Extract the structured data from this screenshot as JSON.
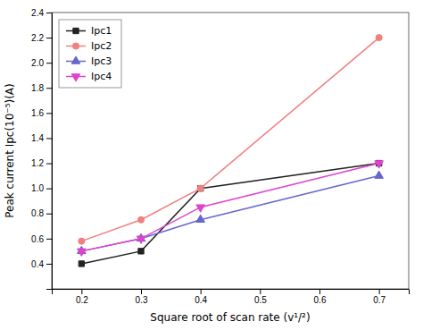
{
  "chart_data": {
    "type": "line",
    "x_label": "Square root of scan rate (v¹/²)",
    "y_label": "Peak current Ipc(10⁻⁵)(A)",
    "x": [
      0.2,
      0.3,
      0.4,
      0.7
    ],
    "series": [
      {
        "name": "Ipc1",
        "color": "#222222",
        "marker": "square",
        "values": [
          0.4,
          0.5,
          1.0,
          1.2
        ]
      },
      {
        "name": "Ipc2",
        "color": "#f08080",
        "marker": "circle",
        "values": [
          0.58,
          0.75,
          1.0,
          2.2
        ]
      },
      {
        "name": "Ipc3",
        "color": "#6666cc",
        "marker": "triangle-up",
        "values": [
          0.5,
          0.6,
          0.75,
          1.1
        ]
      },
      {
        "name": "Ipc4",
        "color": "#dd44cc",
        "marker": "triangle-down",
        "values": [
          0.5,
          0.6,
          0.85,
          1.2
        ]
      }
    ],
    "xlim": [
      0.15,
      0.75
    ],
    "ylim": [
      0.2,
      2.4
    ],
    "xticks": [
      0.2,
      0.3,
      0.4,
      0.5,
      0.6,
      0.7
    ],
    "yticks": [
      0.4,
      0.6,
      0.8,
      {
        "value": 1.0,
        "label": "1.0"
      },
      1.2,
      1.4,
      1.6,
      1.8,
      {
        "value": 2.0,
        "label": "2.0"
      },
      2.2,
      2.4
    ],
    "grid": false,
    "legend": "upper left"
  }
}
